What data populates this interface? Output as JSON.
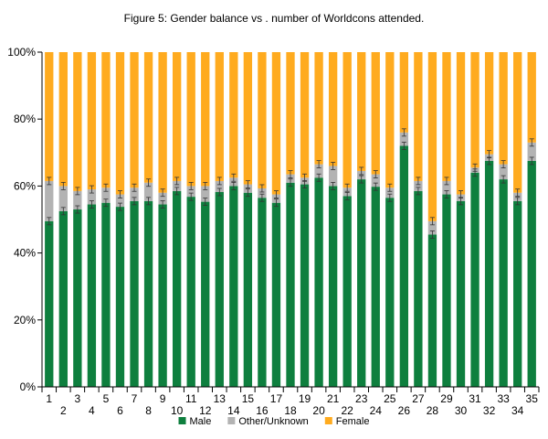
{
  "chart_data": {
    "type": "bar",
    "stacked": true,
    "title": "Figure 5: Gender balance vs . number of Worldcons attended.",
    "xlabel": "",
    "ylabel": "",
    "ylim": [
      0,
      100
    ],
    "yticks": [
      "0%",
      "20%",
      "40%",
      "60%",
      "80%",
      "100%"
    ],
    "yticks_values": [
      0,
      20,
      40,
      60,
      80,
      100
    ],
    "grid": false,
    "legend_position": "bottom",
    "categories": [
      "1",
      "2",
      "3",
      "4",
      "5",
      "6",
      "7",
      "8",
      "9",
      "10",
      "11",
      "12",
      "13",
      "14",
      "15",
      "16",
      "17",
      "18",
      "19",
      "20",
      "21",
      "22",
      "23",
      "24",
      "25",
      "26",
      "27",
      "28",
      "29",
      "30",
      "31",
      "32",
      "33",
      "34",
      "35"
    ],
    "series": [
      {
        "name": "Male",
        "color": "#0e7f3e",
        "values": [
          49.5,
          52.5,
          53,
          54.5,
          55,
          53.8,
          55.5,
          55.5,
          54.5,
          58.5,
          56.8,
          55.3,
          58.2,
          60,
          58,
          56.5,
          55,
          61,
          60.5,
          62.5,
          60,
          57,
          62,
          59.8,
          56.5,
          72,
          58.5,
          45.5,
          57.5,
          55.5,
          64,
          67.5,
          62,
          55.5,
          67.5
        ]
      },
      {
        "name": "Other/Unknown",
        "color": "#b3b3b3",
        "values": [
          12,
          7.5,
          5.5,
          4.5,
          4.5,
          3.7,
          4,
          5.5,
          3.5,
          3,
          3.2,
          4.7,
          3.3,
          2.5,
          2.5,
          2.8,
          2.5,
          2.5,
          2,
          4,
          6,
          2.5,
          2.5,
          3.7,
          3,
          4,
          3,
          4,
          4,
          2,
          1.5,
          2,
          4.5,
          2.5,
          5.5
        ]
      },
      {
        "name": "Female",
        "color": "#ffab1f",
        "values": [
          38.5,
          40,
          41.5,
          41,
          40.5,
          42.5,
          40.5,
          39,
          42,
          38.5,
          40,
          40,
          38.5,
          37.5,
          39.5,
          40.7,
          42.5,
          36.5,
          37.5,
          33.5,
          34,
          40.5,
          35.5,
          36.5,
          40.5,
          24,
          38.5,
          50.5,
          38.5,
          42.5,
          34.5,
          30.5,
          33.5,
          42,
          27
        ]
      }
    ]
  }
}
